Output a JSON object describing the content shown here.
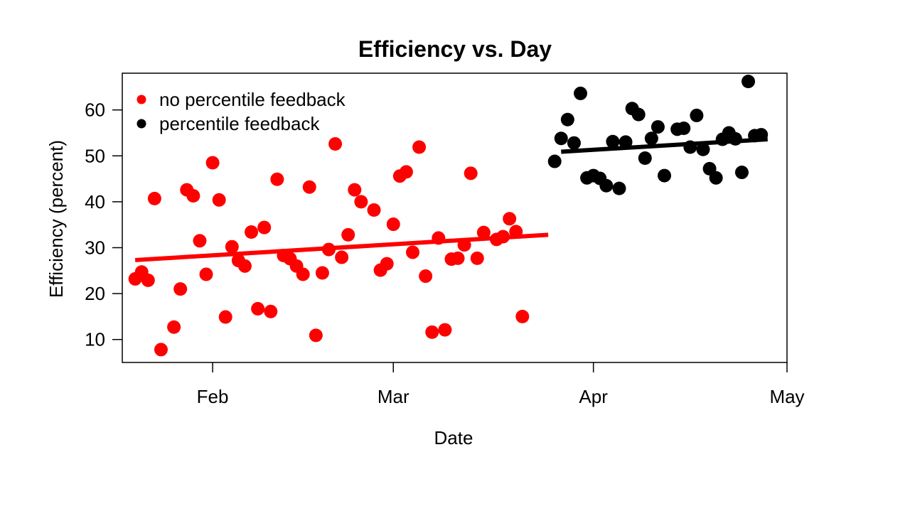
{
  "chart_data": {
    "type": "scatter",
    "title": "Efficiency vs. Day",
    "xlabel": "Date",
    "ylabel": "Efficiency (percent)",
    "xlim": [
      "2013-01-18",
      "2013-05-01"
    ],
    "ylim": [
      5,
      68
    ],
    "x_ticks": [
      {
        "date": "2013-02-01",
        "label": "Feb"
      },
      {
        "date": "2013-03-01",
        "label": "Mar"
      },
      {
        "date": "2013-04-01",
        "label": "Apr"
      },
      {
        "date": "2013-05-01",
        "label": "May"
      }
    ],
    "y_ticks": [
      10,
      20,
      30,
      40,
      50,
      60
    ],
    "legend_position": "top-left",
    "grid": false,
    "series": [
      {
        "name": "no percentile feedback",
        "color": "#ff0000",
        "trend": [
          [
            "2013-01-20",
            27.3
          ],
          [
            "2013-03-25",
            32.8
          ]
        ],
        "points": [
          [
            "2013-01-20",
            23.2
          ],
          [
            "2013-01-21",
            24.7
          ],
          [
            "2013-01-22",
            22.9
          ],
          [
            "2013-01-23",
            40.7
          ],
          [
            "2013-01-24",
            7.8
          ],
          [
            "2013-01-26",
            12.7
          ],
          [
            "2013-01-27",
            21.0
          ],
          [
            "2013-01-28",
            42.6
          ],
          [
            "2013-01-29",
            41.3
          ],
          [
            "2013-01-30",
            31.5
          ],
          [
            "2013-01-31",
            24.2
          ],
          [
            "2013-02-01",
            48.5
          ],
          [
            "2013-02-02",
            40.4
          ],
          [
            "2013-02-03",
            14.9
          ],
          [
            "2013-02-04",
            30.2
          ],
          [
            "2013-02-05",
            27.2
          ],
          [
            "2013-02-06",
            26.0
          ],
          [
            "2013-02-07",
            33.4
          ],
          [
            "2013-02-08",
            16.7
          ],
          [
            "2013-02-09",
            34.4
          ],
          [
            "2013-02-10",
            16.1
          ],
          [
            "2013-02-11",
            44.9
          ],
          [
            "2013-02-12",
            28.3
          ],
          [
            "2013-02-13",
            27.6
          ],
          [
            "2013-02-14",
            26.0
          ],
          [
            "2013-02-15",
            24.2
          ],
          [
            "2013-02-16",
            43.2
          ],
          [
            "2013-02-17",
            10.9
          ],
          [
            "2013-02-18",
            24.5
          ],
          [
            "2013-02-19",
            29.6
          ],
          [
            "2013-02-20",
            52.6
          ],
          [
            "2013-02-21",
            27.9
          ],
          [
            "2013-02-22",
            32.8
          ],
          [
            "2013-02-23",
            42.6
          ],
          [
            "2013-02-24",
            40.0
          ],
          [
            "2013-02-26",
            38.2
          ],
          [
            "2013-02-27",
            25.1
          ],
          [
            "2013-02-28",
            26.5
          ],
          [
            "2013-03-01",
            35.1
          ],
          [
            "2013-03-02",
            45.6
          ],
          [
            "2013-03-03",
            46.5
          ],
          [
            "2013-03-04",
            29.0
          ],
          [
            "2013-03-05",
            51.9
          ],
          [
            "2013-03-06",
            23.8
          ],
          [
            "2013-03-07",
            11.6
          ],
          [
            "2013-03-08",
            32.1
          ],
          [
            "2013-03-09",
            12.1
          ],
          [
            "2013-03-10",
            27.5
          ],
          [
            "2013-03-11",
            27.7
          ],
          [
            "2013-03-12",
            30.6
          ],
          [
            "2013-03-13",
            46.2
          ],
          [
            "2013-03-14",
            27.7
          ],
          [
            "2013-03-15",
            33.3
          ],
          [
            "2013-03-17",
            31.8
          ],
          [
            "2013-03-18",
            32.4
          ],
          [
            "2013-03-19",
            36.3
          ],
          [
            "2013-03-20",
            33.5
          ],
          [
            "2013-03-21",
            15.0
          ]
        ]
      },
      {
        "name": "percentile feedback",
        "color": "#000000",
        "trend": [
          [
            "2013-03-27",
            50.9
          ],
          [
            "2013-04-28",
            53.6
          ]
        ],
        "points": [
          [
            "2013-03-26",
            48.8
          ],
          [
            "2013-03-27",
            53.8
          ],
          [
            "2013-03-28",
            57.9
          ],
          [
            "2013-03-29",
            52.8
          ],
          [
            "2013-03-30",
            63.6
          ],
          [
            "2013-03-31",
            45.2
          ],
          [
            "2013-04-01",
            45.7
          ],
          [
            "2013-04-02",
            45.1
          ],
          [
            "2013-04-03",
            43.5
          ],
          [
            "2013-04-04",
            53.1
          ],
          [
            "2013-04-05",
            42.9
          ],
          [
            "2013-04-06",
            53.0
          ],
          [
            "2013-04-07",
            60.3
          ],
          [
            "2013-04-08",
            59.0
          ],
          [
            "2013-04-09",
            49.5
          ],
          [
            "2013-04-10",
            53.8
          ],
          [
            "2013-04-11",
            56.3
          ],
          [
            "2013-04-12",
            45.7
          ],
          [
            "2013-04-14",
            55.8
          ],
          [
            "2013-04-15",
            56.0
          ],
          [
            "2013-04-16",
            51.9
          ],
          [
            "2013-04-17",
            58.8
          ],
          [
            "2013-04-18",
            51.4
          ],
          [
            "2013-04-19",
            47.2
          ],
          [
            "2013-04-20",
            45.2
          ],
          [
            "2013-04-21",
            53.6
          ],
          [
            "2013-04-22",
            55.0
          ],
          [
            "2013-04-23",
            53.7
          ],
          [
            "2013-04-24",
            46.4
          ],
          [
            "2013-04-25",
            66.2
          ],
          [
            "2013-04-26",
            54.4
          ],
          [
            "2013-04-27",
            54.6
          ]
        ]
      }
    ]
  }
}
